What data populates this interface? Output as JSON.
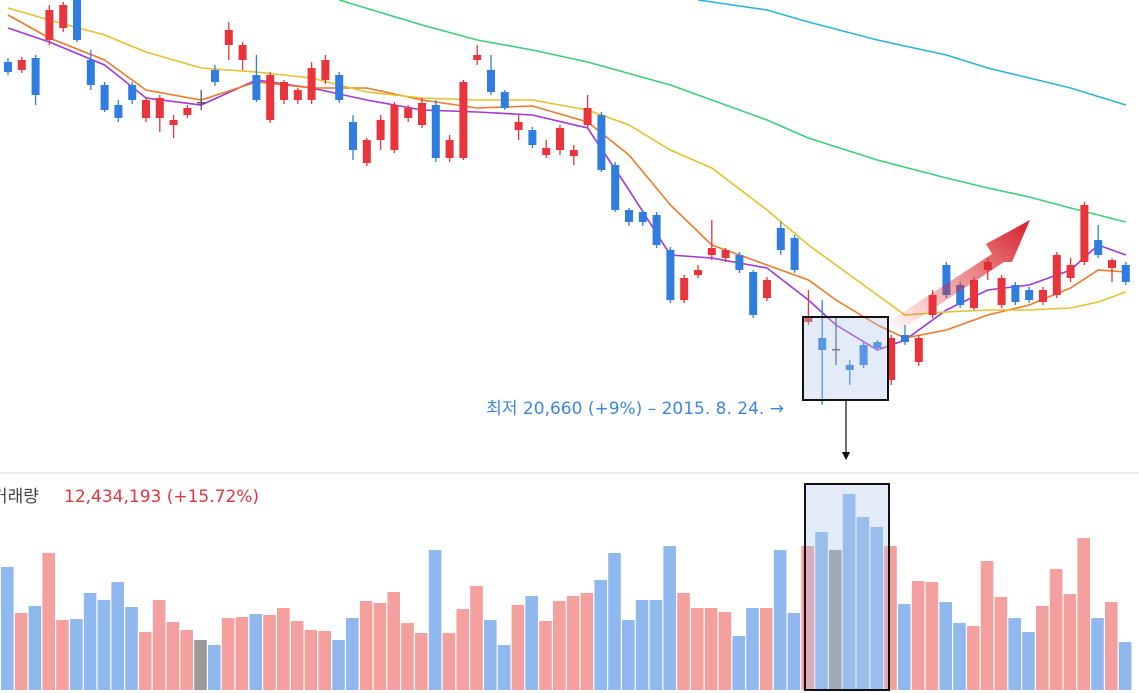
{
  "chart_data": {
    "type": "candlestick",
    "ylim": [
      20500,
      32800
    ],
    "up_color": "#e8343a",
    "down_color": "#2f7de1",
    "flat_color": "#555555",
    "ohlc": [
      [
        30940,
        31060,
        30550,
        30640
      ],
      [
        30700,
        31090,
        30610,
        31000
      ],
      [
        31060,
        31150,
        29650,
        29950
      ],
      [
        31600,
        32650,
        31450,
        32500
      ],
      [
        31960,
        32740,
        31840,
        32650
      ],
      [
        32800,
        32800,
        31540,
        31600
      ],
      [
        31000,
        31300,
        30100,
        30250
      ],
      [
        30250,
        30340,
        29440,
        29500
      ],
      [
        29650,
        29800,
        29140,
        29260
      ],
      [
        30250,
        30340,
        29680,
        29800
      ],
      [
        29260,
        29890,
        29140,
        29800
      ],
      [
        29260,
        29950,
        28840,
        29860
      ],
      [
        29050,
        29350,
        28660,
        29200
      ],
      [
        29350,
        29650,
        29260,
        29560
      ],
      [
        29740,
        30100,
        29500,
        29740
      ],
      [
        30700,
        30850,
        30220,
        30340
      ],
      [
        31450,
        32140,
        31000,
        31900
      ],
      [
        31000,
        31540,
        30700,
        31450
      ],
      [
        30550,
        31150,
        29740,
        29800
      ],
      [
        29200,
        30640,
        29110,
        30550
      ],
      [
        29800,
        30400,
        29680,
        30340
      ],
      [
        29800,
        30160,
        29680,
        30100
      ],
      [
        29800,
        30940,
        29680,
        30760
      ],
      [
        30400,
        31150,
        30280,
        31000
      ],
      [
        30550,
        30640,
        29710,
        29800
      ],
      [
        29140,
        29350,
        28000,
        28300
      ],
      [
        27910,
        28660,
        27820,
        28600
      ],
      [
        28600,
        29350,
        28300,
        29200
      ],
      [
        28300,
        29740,
        28210,
        29650
      ],
      [
        29260,
        29650,
        29140,
        29560
      ],
      [
        29050,
        29860,
        28960,
        29710
      ],
      [
        29650,
        29800,
        27940,
        28060
      ],
      [
        28060,
        28750,
        27940,
        28600
      ],
      [
        28060,
        30400,
        28000,
        30340
      ],
      [
        31000,
        31450,
        30850,
        31150
      ],
      [
        30700,
        31150,
        29950,
        30040
      ],
      [
        30040,
        30100,
        29500,
        29560
      ],
      [
        28900,
        29350,
        28600,
        29140
      ],
      [
        28900,
        28990,
        28360,
        28450
      ],
      [
        28150,
        28600,
        28060,
        28360
      ],
      [
        28300,
        29050,
        28150,
        28960
      ],
      [
        28120,
        28450,
        27850,
        28300
      ],
      [
        29050,
        29950,
        28960,
        29560
      ],
      [
        29350,
        29440,
        27640,
        27700
      ],
      [
        27850,
        27940,
        26440,
        26500
      ],
      [
        26500,
        26560,
        26020,
        26140
      ],
      [
        26440,
        26500,
        26020,
        26140
      ],
      [
        26350,
        26440,
        25360,
        25450
      ],
      [
        25300,
        25390,
        23710,
        23800
      ],
      [
        23800,
        24550,
        23710,
        24460
      ],
      [
        24550,
        24850,
        24460,
        24700
      ],
      [
        25150,
        26200,
        25000,
        25360
      ],
      [
        25060,
        25360,
        24940,
        25300
      ],
      [
        25150,
        25240,
        24610,
        24700
      ],
      [
        24640,
        24700,
        23260,
        23350
      ],
      [
        23860,
        24490,
        23770,
        24400
      ],
      [
        25960,
        26140,
        25150,
        25300
      ],
      [
        25660,
        25750,
        24610,
        24700
      ],
      [
        23140,
        24100,
        23050,
        23260
      ],
      [
        22660,
        23800,
        20660,
        22300
      ],
      [
        22330,
        23260,
        21850,
        22330
      ],
      [
        21850,
        22000,
        21250,
        21700
      ],
      [
        22450,
        22540,
        21760,
        21850
      ],
      [
        22540,
        22600,
        22300,
        22360
      ],
      [
        21400,
        22750,
        21250,
        22660
      ],
      [
        22750,
        23050,
        22450,
        22540
      ],
      [
        21940,
        22750,
        21820,
        22660
      ],
      [
        23350,
        24100,
        23260,
        23950
      ],
      [
        24850,
        24940,
        23860,
        23950
      ],
      [
        24250,
        24340,
        23560,
        23650
      ],
      [
        23560,
        24490,
        23500,
        24400
      ],
      [
        24700,
        25060,
        24400,
        24940
      ],
      [
        23650,
        24550,
        23560,
        24460
      ],
      [
        24250,
        24340,
        23650,
        23740
      ],
      [
        24100,
        24190,
        23710,
        23800
      ],
      [
        23740,
        24190,
        23650,
        24100
      ],
      [
        23950,
        25240,
        23860,
        25150
      ],
      [
        24460,
        25060,
        24340,
        24850
      ],
      [
        24940,
        26740,
        24850,
        26650
      ],
      [
        25600,
        26050,
        25060,
        25150
      ],
      [
        24760,
        25060,
        24340,
        25000
      ],
      [
        24850,
        24940,
        24250,
        24340
      ]
    ],
    "moving_averages": [
      {
        "color": "#a238d6",
        "x": [
          0,
          3,
          7,
          10,
          14,
          18,
          22,
          26,
          30,
          34,
          38,
          42,
          45,
          48,
          51,
          55,
          58,
          60,
          63,
          65,
          68,
          71,
          74,
          77,
          79,
          81
        ],
        "values": [
          31960,
          31540,
          30850,
          29860,
          29650,
          30400,
          30160,
          29800,
          29500,
          29440,
          29350,
          28960,
          27100,
          25150,
          25060,
          24760,
          23800,
          23050,
          22300,
          22600,
          23500,
          24100,
          24250,
          24700,
          25450,
          25150
        ]
      },
      {
        "color": "#ee7a2a",
        "x": [
          0,
          3,
          7,
          10,
          14,
          18,
          22,
          26,
          30,
          34,
          38,
          42,
          45,
          48,
          51,
          55,
          58,
          60,
          63,
          65,
          68,
          71,
          74,
          77,
          79,
          81
        ],
        "values": [
          32350,
          31660,
          31000,
          30100,
          29800,
          30340,
          30160,
          30160,
          29800,
          29560,
          29620,
          29140,
          28150,
          26650,
          25450,
          24850,
          24400,
          23800,
          23050,
          22660,
          22900,
          23350,
          23650,
          24160,
          24700,
          24640
        ]
      },
      {
        "color": "#e6c02e",
        "x": [
          0,
          3,
          7,
          10,
          14,
          18,
          22,
          26,
          30,
          34,
          38,
          42,
          45,
          48,
          51,
          55,
          58,
          60,
          63,
          65,
          68,
          71,
          74,
          77,
          79,
          81
        ],
        "values": [
          32560,
          32200,
          31750,
          31240,
          30760,
          30640,
          30460,
          30040,
          29860,
          29800,
          29800,
          29500,
          29050,
          28300,
          27760,
          26500,
          25450,
          24850,
          23950,
          23350,
          23440,
          23500,
          23500,
          23560,
          23740,
          24040
        ]
      },
      {
        "color": "#3ccf7a",
        "x": [
          24,
          30,
          34,
          38,
          42,
          48,
          51,
          55,
          58,
          63,
          68,
          71,
          74,
          77,
          81
        ],
        "values": [
          32800,
          32050,
          31600,
          31300,
          30940,
          30250,
          29800,
          29200,
          28660,
          28000,
          27460,
          27160,
          26890,
          26560,
          26140
        ]
      },
      {
        "color": "#2ab6d6",
        "x": [
          50,
          55,
          58,
          63,
          68,
          71,
          74,
          77,
          81
        ],
        "values": [
          32800,
          32500,
          32140,
          31600,
          31150,
          30760,
          30460,
          30160,
          29650
        ]
      }
    ],
    "annotation": "최저 20,660 (+9%) – 2015. 8. 24. →",
    "volume": {
      "label": "거래량",
      "summary": "12,434,193 (+15.72%)",
      "ylim": [
        0,
        21000000
      ],
      "up_color": "#f4a09f",
      "down_color": "#8fb8ef",
      "flat_color": "#9a9a9a",
      "values": [
        12300000,
        7700000,
        8400000,
        13700000,
        7000000,
        7100000,
        9700000,
        9000000,
        10800000,
        8300000,
        5800000,
        9000000,
        6800000,
        6000000,
        5000000,
        4500000,
        7200000,
        7300000,
        7600000,
        7500000,
        8200000,
        6900000,
        6000000,
        5900000,
        5000000,
        7200000,
        8900000,
        8700000,
        9800000,
        6700000,
        5700000,
        14000000,
        5700000,
        8100000,
        10400000,
        7000000,
        4500000,
        8500000,
        9400000,
        6900000,
        8900000,
        9400000,
        9700000,
        11000000,
        13700000,
        7000000,
        9000000,
        9000000,
        14400000,
        9700000,
        8200000,
        8200000,
        7800000,
        5400000,
        8200000,
        8200000,
        14000000,
        7700000,
        14400000,
        15800000,
        14000000,
        19600000,
        17300000,
        16300000,
        14400000,
        8600000,
        10900000,
        10800000,
        8800000,
        6700000,
        6400000,
        12900000,
        9300000,
        7200000,
        5800000,
        8400000,
        12100000,
        9600000,
        15200000,
        7200000,
        8800000,
        4800000
      ]
    }
  }
}
